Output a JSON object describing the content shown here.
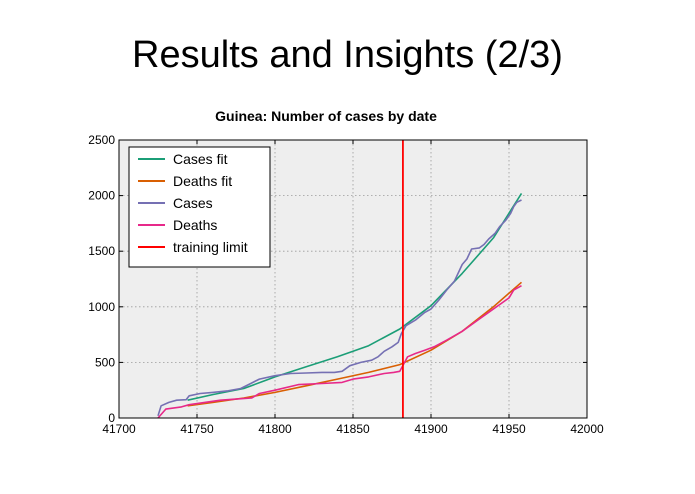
{
  "slide": {
    "title": "Results and Insights (2/3)"
  },
  "chart_data": {
    "type": "line",
    "title": "Guinea: Number of cases by date",
    "xlabel": "",
    "ylabel": "",
    "xlim": [
      41700,
      42000
    ],
    "ylim": [
      0,
      2500
    ],
    "xticks": [
      41700,
      41750,
      41800,
      41850,
      41900,
      41950,
      42000
    ],
    "yticks": [
      0,
      500,
      1000,
      1500,
      2000,
      2500
    ],
    "grid": true,
    "legend_position": "top-left",
    "series": [
      {
        "name": "Cases fit",
        "color": "#1b9e77",
        "x": [
          41744,
          41760,
          41780,
          41800,
          41820,
          41840,
          41860,
          41880,
          41900,
          41920,
          41940,
          41958
        ],
        "y": [
          160,
          210,
          265,
          370,
          460,
          550,
          650,
          800,
          1010,
          1300,
          1620,
          2020
        ]
      },
      {
        "name": "Deaths fit",
        "color": "#d95f02",
        "x": [
          41744,
          41760,
          41780,
          41800,
          41820,
          41840,
          41860,
          41880,
          41900,
          41920,
          41940,
          41958
        ],
        "y": [
          110,
          140,
          180,
          230,
          290,
          350,
          410,
          480,
          610,
          780,
          1000,
          1220
        ]
      },
      {
        "name": "Cases",
        "color": "#7570b3",
        "x": [
          41725,
          41727,
          41732,
          41737,
          41743,
          41745,
          41752,
          41760,
          41770,
          41778,
          41783,
          41790,
          41800,
          41810,
          41820,
          41830,
          41838,
          41843,
          41848,
          41855,
          41862,
          41866,
          41870,
          41875,
          41879,
          41881,
          41884,
          41890,
          41896,
          41900,
          41905,
          41910,
          41915,
          41920,
          41923,
          41926,
          41931,
          41934,
          41937,
          41941,
          41944,
          41948,
          41951,
          41953,
          41955,
          41958
        ],
        "y": [
          20,
          110,
          140,
          160,
          165,
          200,
          220,
          230,
          245,
          265,
          300,
          350,
          380,
          400,
          405,
          410,
          410,
          420,
          470,
          500,
          520,
          550,
          600,
          640,
          680,
          760,
          830,
          880,
          950,
          980,
          1060,
          1150,
          1230,
          1380,
          1430,
          1520,
          1530,
          1560,
          1610,
          1660,
          1720,
          1780,
          1840,
          1900,
          1940,
          1960
        ]
      },
      {
        "name": "Deaths",
        "color": "#e7298a",
        "x": [
          41725,
          41730,
          41740,
          41745,
          41755,
          41765,
          41775,
          41785,
          41790,
          41800,
          41815,
          41830,
          41843,
          41850,
          41860,
          41870,
          41876,
          41880,
          41885,
          41890,
          41896,
          41902,
          41910,
          41920,
          41930,
          41938,
          41944,
          41950,
          41953,
          41958
        ],
        "y": [
          0,
          80,
          100,
          120,
          140,
          160,
          170,
          180,
          220,
          250,
          300,
          310,
          320,
          350,
          370,
          400,
          410,
          420,
          550,
          580,
          610,
          640,
          700,
          780,
          880,
          960,
          1020,
          1080,
          1150,
          1190
        ]
      }
    ],
    "markers": [
      {
        "name": "training limit",
        "color": "#ff0000",
        "type": "vline",
        "x": 41882
      }
    ]
  }
}
